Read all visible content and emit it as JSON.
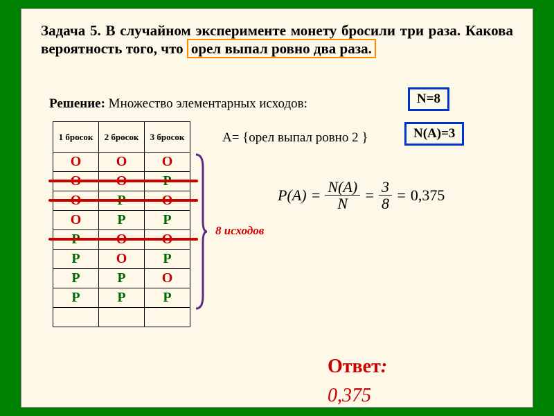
{
  "problem": {
    "prefix": "Задача 5. В случайном эксперименте монету бросили три раза. Какова вероятность того, что ",
    "highlight": "орел выпал ровно два раза."
  },
  "solution_label": "Решение:",
  "solution_text": "  Множество элементарных исходов:",
  "n_box": "N=8",
  "a_def": "A= {орел выпал ровно 2 }",
  "na_box": "N(A)=3",
  "table": {
    "headers": [
      "1 бросок",
      "2 бросок",
      "3 бросок"
    ],
    "rows": [
      [
        "О",
        "О",
        "О"
      ],
      [
        "О",
        "О",
        "Р"
      ],
      [
        "О",
        "Р",
        "О"
      ],
      [
        "О",
        "Р",
        "Р"
      ],
      [
        "Р",
        "О",
        "О"
      ],
      [
        "Р",
        "О",
        "Р"
      ],
      [
        "Р",
        "Р",
        "О"
      ],
      [
        "Р",
        "Р",
        "Р"
      ]
    ],
    "strike_rows": [
      1,
      2,
      4
    ],
    "colors": {
      "О": "O",
      "Р": "P"
    }
  },
  "outcomes_label": "8 исходов",
  "formula": {
    "lhs": "P(A)",
    "num1": "N(A)",
    "den1": "N",
    "num2": "3",
    "den2": "8",
    "result": "0,375"
  },
  "answer_label": "Ответ",
  "answer_value": "0,375",
  "style": {
    "bg": "#008000",
    "card_bg": "#fef8e8",
    "blue": "#0033cc",
    "orange": "#ff8c00",
    "red": "#cc0000",
    "green": "#006600"
  }
}
